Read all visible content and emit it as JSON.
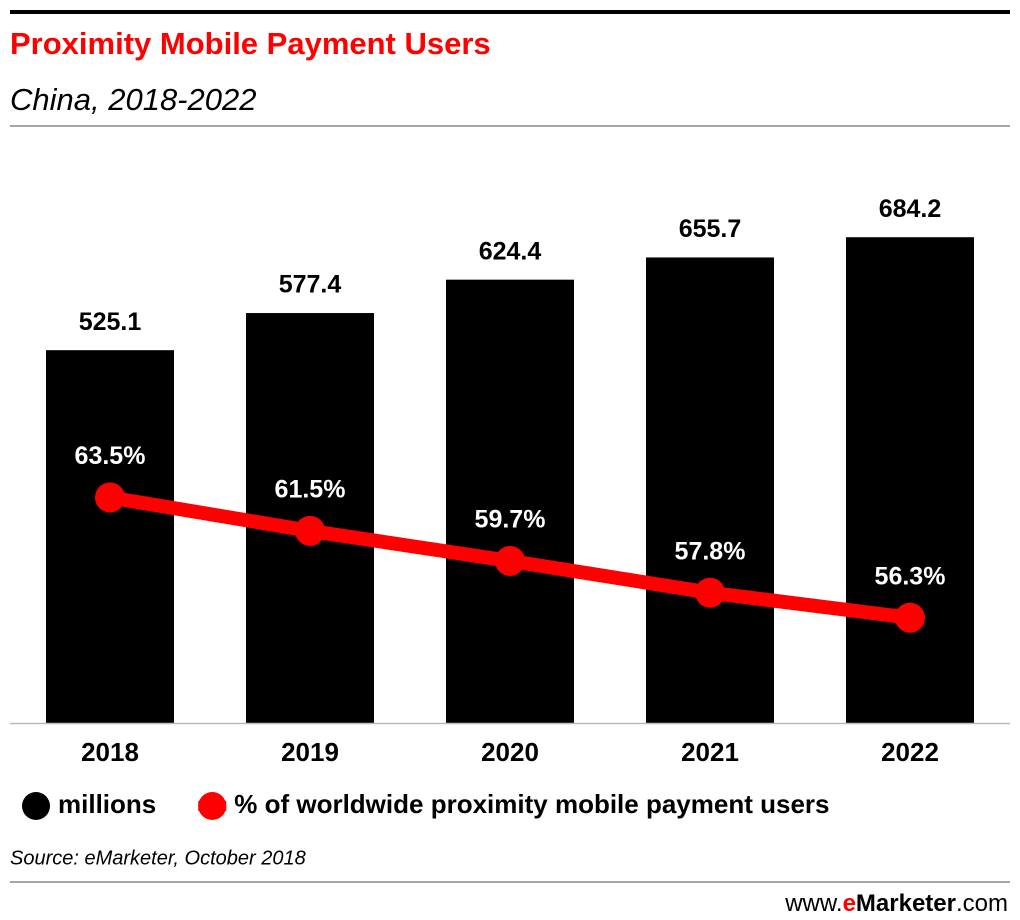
{
  "chart_data": {
    "type": "bar",
    "title": "Proximity Mobile Payment Users",
    "subtitle": "China, 2018-2022",
    "categories": [
      "2018",
      "2019",
      "2020",
      "2021",
      "2022"
    ],
    "series": [
      {
        "name": "millions",
        "type": "bar",
        "color": "#000000",
        "values": [
          525.1,
          577.4,
          624.4,
          655.7,
          684.2
        ]
      },
      {
        "name": "% of worldwide proximity mobile payment users",
        "type": "line",
        "axis": "y2",
        "color": "#ff0000",
        "values": [
          63.5,
          61.5,
          59.7,
          57.8,
          56.3
        ],
        "value_labels": [
          "63.5%",
          "61.5%",
          "59.7%",
          "57.8%",
          "56.3%"
        ]
      }
    ],
    "ylim": [
      0,
      800
    ],
    "y2lim": [
      50,
      84
    ],
    "source": "Source: eMarketer, October 2018",
    "logo": {
      "prefix": "www.",
      "brand_e": "e",
      "brand": "Marketer",
      "suffix": ".com"
    }
  }
}
